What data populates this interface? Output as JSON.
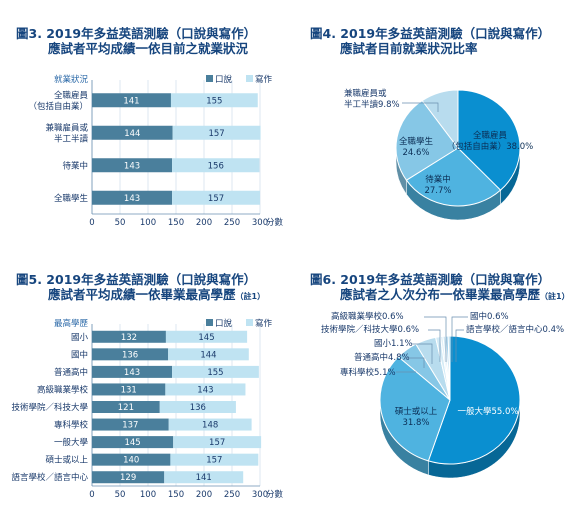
{
  "colors": {
    "score_dark": "#4a7f9c",
    "score_light": "#bfe3f2",
    "title": "#16457e",
    "pie_main": "#0a8fd0",
    "pie_2": "#4fb3e0",
    "pie_3": "#86c7e6",
    "pie_4": "#b8dcee",
    "pie_5": "#d4ebf6"
  },
  "panels": {
    "fig3": {
      "title_line1": "圖3. 2019年多益英語測驗（口說與寫作）",
      "title_line2": "應試者平均成績一依目前之就業狀況"
    },
    "fig4": {
      "title_line1": "圖4. 2019年多益英語測驗（口說與寫作）",
      "title_line2": "應試者目前就業狀況比率"
    },
    "fig5": {
      "title_line1": "圖5. 2019年多益英語測驗（口說與寫作）",
      "title_line2": "應試者平均成績一依畢業最高學歷",
      "title_note": "（註1）"
    },
    "fig6": {
      "title_line1": "圖6. 2019年多益英語測驗（口說與寫作）",
      "title_line2": "應試者之人次分布一依畢業最高學歷",
      "title_note": "（註1）"
    }
  },
  "chart_data": [
    {
      "id": "fig3",
      "type": "bar",
      "orientation": "horizontal",
      "stacked": true,
      "category_header": "就業狀況",
      "categories": [
        "全職雇員\n（包括自由業）",
        "兼職雇員或\n半工半讀",
        "待業中",
        "全職學生"
      ],
      "series": [
        {
          "name": "口說",
          "values": [
            141,
            144,
            143,
            143
          ]
        },
        {
          "name": "寫作",
          "values": [
            155,
            157,
            156,
            157
          ]
        }
      ],
      "xlim": [
        0,
        300
      ],
      "xticks": [
        0,
        50,
        100,
        150,
        200,
        250,
        300
      ],
      "xunit": "分數",
      "legend": "top-right"
    },
    {
      "id": "fig4",
      "type": "pie",
      "labels": [
        "全職雇員\n（包括自由業）",
        "待業中",
        "全職學生",
        "兼職雇員或\n半工半讀"
      ],
      "values": [
        38.0,
        27.7,
        24.6,
        9.8
      ],
      "value_labels": [
        "38.0%",
        "27.7%",
        "24.6%",
        "9.8%"
      ]
    },
    {
      "id": "fig5",
      "type": "bar",
      "orientation": "horizontal",
      "stacked": true,
      "category_header": "最高學歷",
      "categories": [
        "國小",
        "國中",
        "普通高中",
        "高級職業學校",
        "技術學院／科技大學",
        "專科學校",
        "一般大學",
        "碩士或以上",
        "語言學校／語言中心"
      ],
      "series": [
        {
          "name": "口說",
          "values": [
            132,
            136,
            143,
            131,
            121,
            137,
            145,
            140,
            129
          ]
        },
        {
          "name": "寫作",
          "values": [
            145,
            144,
            155,
            143,
            136,
            148,
            157,
            157,
            141
          ]
        }
      ],
      "xlim": [
        0,
        300
      ],
      "xticks": [
        0,
        50,
        100,
        150,
        200,
        250,
        300
      ],
      "xunit": "分數",
      "legend": "top-right"
    },
    {
      "id": "fig6",
      "type": "pie",
      "labels": [
        "一般大學",
        "碩士或以上",
        "專科學校",
        "普通高中",
        "國小",
        "技術學院／科技大學",
        "高級職業學校",
        "國中",
        "語言學校／語言中心"
      ],
      "values": [
        55.0,
        31.8,
        5.1,
        4.8,
        1.1,
        0.6,
        0.6,
        0.6,
        0.4
      ],
      "value_labels": [
        "55.0%",
        "31.8%",
        "5.1%",
        "4.8%",
        "1.1%",
        "0.6%",
        "0.6%",
        "0.6%",
        "0.4%"
      ]
    }
  ]
}
